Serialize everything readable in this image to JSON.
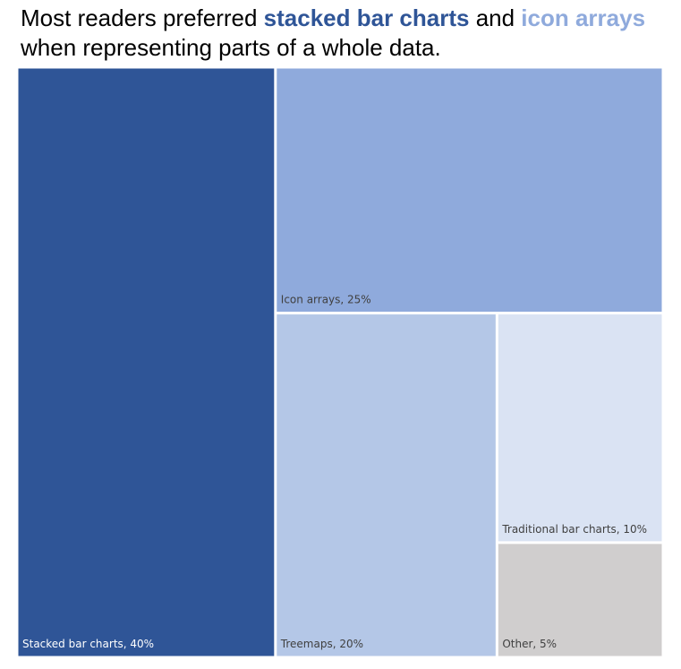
{
  "title": {
    "part1": "Most readers preferred ",
    "highlight1": "stacked bar charts",
    "part2": " and ",
    "highlight2": "icon arrays",
    "part3": " when representing parts of a whole data."
  },
  "colors": {
    "stacked": "#2F5597",
    "icon": "#8FAADC",
    "treemaps": "#B4C7E7",
    "traditional": "#DAE3F3",
    "other": "#D0CECE"
  },
  "chart_data": {
    "type": "treemap",
    "title": "Most readers preferred stacked bar charts and icon arrays when representing parts of a whole data.",
    "categories": [
      "Stacked bar charts",
      "Icon arrays",
      "Treemaps",
      "Traditional bar charts",
      "Other"
    ],
    "values": [
      40,
      25,
      20,
      10,
      5
    ],
    "unit": "%",
    "labels": [
      "Stacked bar charts, 40%",
      "Icon arrays, 25%",
      "Treemaps, 20%",
      "Traditional bar charts, 10%",
      "Other, 5%"
    ]
  }
}
